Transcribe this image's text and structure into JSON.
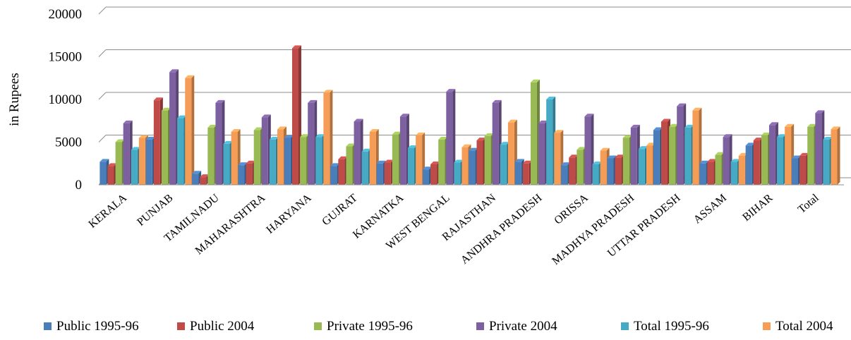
{
  "chart_data": {
    "type": "bar",
    "title": "",
    "xlabel": "",
    "ylabel": "in Rupees",
    "ylim": [
      0,
      20000
    ],
    "yticks": [
      "0",
      "5000",
      "10000",
      "15000",
      "20000"
    ],
    "grid": true,
    "legend_position": "bottom",
    "categories": [
      "KERALA",
      "PUNJAB",
      "TAMILNADU",
      "MAHARASHTRA",
      "HARYANA",
      "GUJRAT",
      "KARNATKA",
      "WEST BENGAL",
      "RAJASTHAN",
      "ANDHRA PRADESH",
      "ORISSA",
      "MADHYA PRADESH",
      "UTTAR PRADESH",
      "ASSAM",
      "BIHAR",
      "Total"
    ],
    "series": [
      {
        "name": "Public 1995-96",
        "color": "#4a7ebb",
        "values": [
          2700,
          5300,
          1300,
          2300,
          5500,
          2200,
          2500,
          1800,
          4000,
          2700,
          2300,
          3100,
          6400,
          2500,
          4600,
          3100
        ]
      },
      {
        "name": "Public 2004",
        "color": "#be4b48",
        "values": [
          2200,
          9900,
          900,
          2500,
          16000,
          3000,
          2600,
          2400,
          5200,
          2500,
          3200,
          3200,
          7400,
          2700,
          5200,
          3400
        ]
      },
      {
        "name": "Private 1995-96",
        "color": "#98b954",
        "values": [
          5000,
          8700,
          6700,
          6400,
          5600,
          4500,
          5900,
          5300,
          5700,
          12000,
          4100,
          5500,
          6800,
          3500,
          5800,
          6800
        ]
      },
      {
        "name": "Private 2004",
        "color": "#7d60a0",
        "values": [
          7200,
          13200,
          9600,
          7900,
          9600,
          7400,
          8000,
          10900,
          9600,
          7200,
          8000,
          6700,
          9200,
          5600,
          7000,
          8400
        ]
      },
      {
        "name": "Total 1995-96",
        "color": "#46aac5",
        "values": [
          4100,
          7800,
          4800,
          5300,
          5600,
          3900,
          4300,
          2600,
          4700,
          10000,
          2400,
          4200,
          6700,
          2700,
          5600,
          5300
        ]
      },
      {
        "name": "Total 2004",
        "color": "#f59d56",
        "values": [
          5500,
          12500,
          6200,
          6500,
          10800,
          6200,
          5800,
          4400,
          7300,
          6100,
          4000,
          4600,
          8700,
          3400,
          6800,
          6500
        ]
      }
    ]
  }
}
